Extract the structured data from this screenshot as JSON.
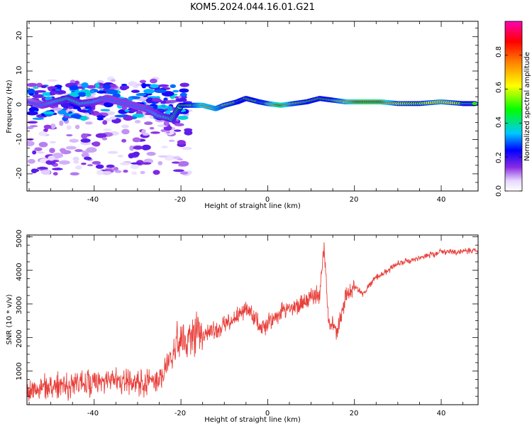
{
  "title": "KOM5.2024.044.16.01.G21",
  "chart_data": [
    {
      "type": "heatmap",
      "xlabel": "Height of straight line (km)",
      "ylabel": "Frequency (Hz)",
      "x_ticks": [
        "-40",
        "-20",
        "0",
        "20",
        "40"
      ],
      "y_ticks": [
        "20",
        "10",
        "0",
        "-10",
        "-20"
      ],
      "xlim": [
        -55.5,
        48.5
      ],
      "ylim": [
        -25,
        24.5
      ],
      "colorbar": {
        "label": "Normalized spectral amplitude",
        "ticks": [
          "0.0",
          "0.2",
          "0.4",
          "0.6",
          "0.8"
        ],
        "range": [
          0,
          1
        ],
        "colormap": [
          "#ffffff",
          "#e6d7ff",
          "#8a2be2",
          "#0000ff",
          "#00c8ff",
          "#00ff00",
          "#ffff00",
          "#ff8000",
          "#ff0000",
          "#ff00b4"
        ]
      },
      "ridge": [
        {
          "x": -55,
          "y": 1,
          "a": 0.25
        },
        {
          "x": -52,
          "y": 0,
          "a": 0.3
        },
        {
          "x": -49,
          "y": 1,
          "a": 0.35
        },
        {
          "x": -46,
          "y": 2,
          "a": 0.4
        },
        {
          "x": -43,
          "y": 0.5,
          "a": 0.38
        },
        {
          "x": -40,
          "y": 1,
          "a": 0.35
        },
        {
          "x": -37,
          "y": 2,
          "a": 0.3
        },
        {
          "x": -34,
          "y": 1,
          "a": 0.3
        },
        {
          "x": -31,
          "y": 0,
          "a": 0.3
        },
        {
          "x": -28,
          "y": -1,
          "a": 0.3
        },
        {
          "x": -25,
          "y": -3,
          "a": 0.35
        },
        {
          "x": -22,
          "y": -4,
          "a": 0.4
        },
        {
          "x": -20,
          "y": 0,
          "a": 0.5
        },
        {
          "x": -17,
          "y": 0,
          "a": 0.6
        },
        {
          "x": -15,
          "y": 0,
          "a": 0.75
        },
        {
          "x": -12,
          "y": -1,
          "a": 0.7
        },
        {
          "x": -10,
          "y": 0,
          "a": 0.6
        },
        {
          "x": -7,
          "y": 1,
          "a": 0.55
        },
        {
          "x": -5,
          "y": 2,
          "a": 0.5
        },
        {
          "x": -2,
          "y": 1,
          "a": 0.55
        },
        {
          "x": 0,
          "y": 0.5,
          "a": 0.6
        },
        {
          "x": 3,
          "y": 0,
          "a": 0.9
        },
        {
          "x": 6,
          "y": 0.5,
          "a": 0.6
        },
        {
          "x": 9,
          "y": 1,
          "a": 0.55
        },
        {
          "x": 12,
          "y": 2,
          "a": 0.5
        },
        {
          "x": 15,
          "y": 1.5,
          "a": 0.55
        },
        {
          "x": 18,
          "y": 1,
          "a": 0.7
        },
        {
          "x": 22,
          "y": 1,
          "a": 0.95
        },
        {
          "x": 26,
          "y": 1,
          "a": 0.9
        },
        {
          "x": 30,
          "y": 0.5,
          "a": 0.6
        },
        {
          "x": 35,
          "y": 0.5,
          "a": 0.55
        },
        {
          "x": 40,
          "y": 1,
          "a": 0.7
        },
        {
          "x": 45,
          "y": 0.5,
          "a": 0.55
        },
        {
          "x": 48,
          "y": 0.5,
          "a": 0.5
        }
      ]
    },
    {
      "type": "line",
      "xlabel": "Height of straight line (km)",
      "ylabel": "SNR (10 * v/v)",
      "x_ticks": [
        "-40",
        "-20",
        "0",
        "20",
        "40"
      ],
      "y_ticks": [
        "5000",
        "4000",
        "3000",
        "2000",
        "1000"
      ],
      "xlim": [
        -55.5,
        48.5
      ],
      "ylim": [
        0,
        5050
      ],
      "line_color": "#e8403b",
      "series": [
        {
          "x": [
            -55,
            -50,
            -45,
            -40,
            -35,
            -30,
            -25,
            -22,
            -20,
            -18,
            -15,
            -12,
            -10,
            -8,
            -5,
            -3,
            -1,
            0,
            2,
            4,
            6,
            8,
            10,
            12,
            13,
            14,
            16,
            18,
            20,
            22,
            25,
            28,
            30,
            33,
            36,
            40,
            44,
            48
          ],
          "y": [
            400,
            550,
            600,
            650,
            700,
            600,
            700,
            1500,
            2000,
            1900,
            2100,
            2200,
            2400,
            2500,
            2800,
            2600,
            2200,
            2400,
            2600,
            2900,
            2900,
            3000,
            3200,
            3300,
            4800,
            2500,
            2200,
            3200,
            3500,
            3300,
            3800,
            4000,
            4200,
            4300,
            4400,
            4550,
            4550,
            4600
          ]
        }
      ]
    }
  ]
}
